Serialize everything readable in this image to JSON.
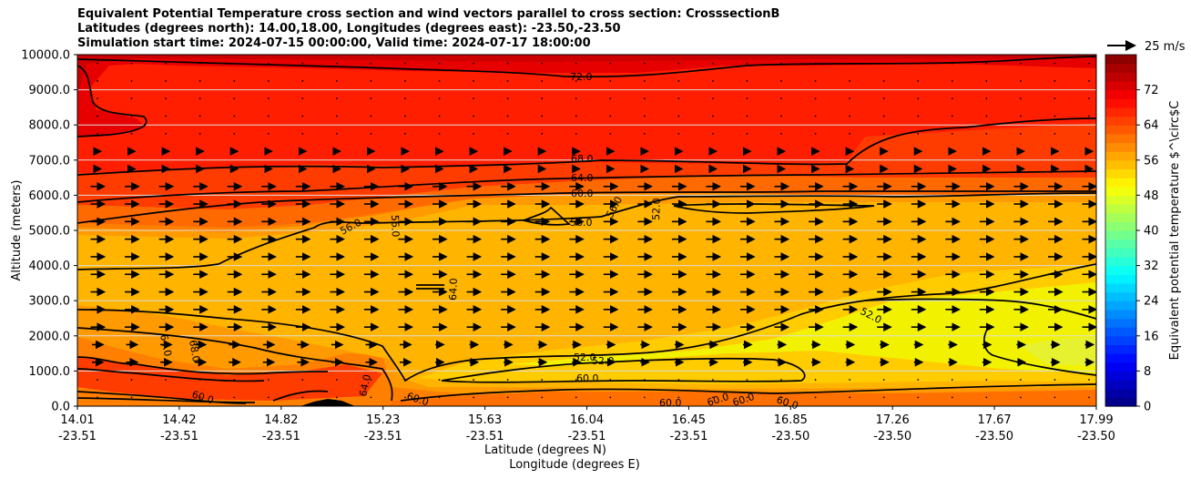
{
  "chart_data": {
    "type": "heatmap",
    "title_lines": [
      "Equivalent Potential Temperature cross section and wind vectors parallel to cross section: CrosssectionB",
      "Latitudes (degrees north): 14.00,18.00, Longitudes (degrees east): -23.50,-23.50",
      "Simulation start time: 2024-07-15 00:00:00, Valid time: 2024-07-17 18:00:00"
    ],
    "ylabel": "Altitude (meters)",
    "xlabel_1": "Latitude (degrees N)",
    "xlabel_2": "Longitude (degrees E)",
    "ylim": [
      0,
      10000
    ],
    "yticks": [
      "0.0",
      "1000.0",
      "2000.0",
      "3000.0",
      "4000.0",
      "5000.0",
      "6000.0",
      "7000.0",
      "8000.0",
      "9000.0",
      "10000.0"
    ],
    "xticks_lat": [
      "14.01",
      "14.42",
      "14.82",
      "15.23",
      "15.63",
      "16.04",
      "16.45",
      "16.85",
      "17.26",
      "17.67",
      "17.99"
    ],
    "xticks_lon": [
      "-23.51",
      "-23.51",
      "-23.51",
      "-23.51",
      "-23.51",
      "-23.51",
      "-23.51",
      "-23.50",
      "-23.50",
      "-23.50",
      "-23.50"
    ],
    "grid": "horizontal",
    "colorbar": {
      "label": "Equivalent potential temperature $^\\circ$C",
      "range": [
        0,
        80
      ],
      "ticks": [
        "0",
        "8",
        "16",
        "24",
        "32",
        "40",
        "48",
        "56",
        "64",
        "72"
      ],
      "colormap": "jet"
    },
    "quiver_key": "25 m/s",
    "contour_labels": [
      "72.0",
      "68.0",
      "64.0",
      "60.0",
      "56.0",
      "56.0",
      "56.0",
      "56.0",
      "52.0",
      "52.0",
      "52.0",
      "52.0",
      "60.0",
      "64.0",
      "64.0",
      "68.0",
      "60.0",
      "64.0",
      "60.0",
      "60.0",
      "60.0",
      "60.0",
      "60.0"
    ],
    "contour_levels": [
      52,
      56,
      60,
      64,
      68,
      72
    ]
  }
}
